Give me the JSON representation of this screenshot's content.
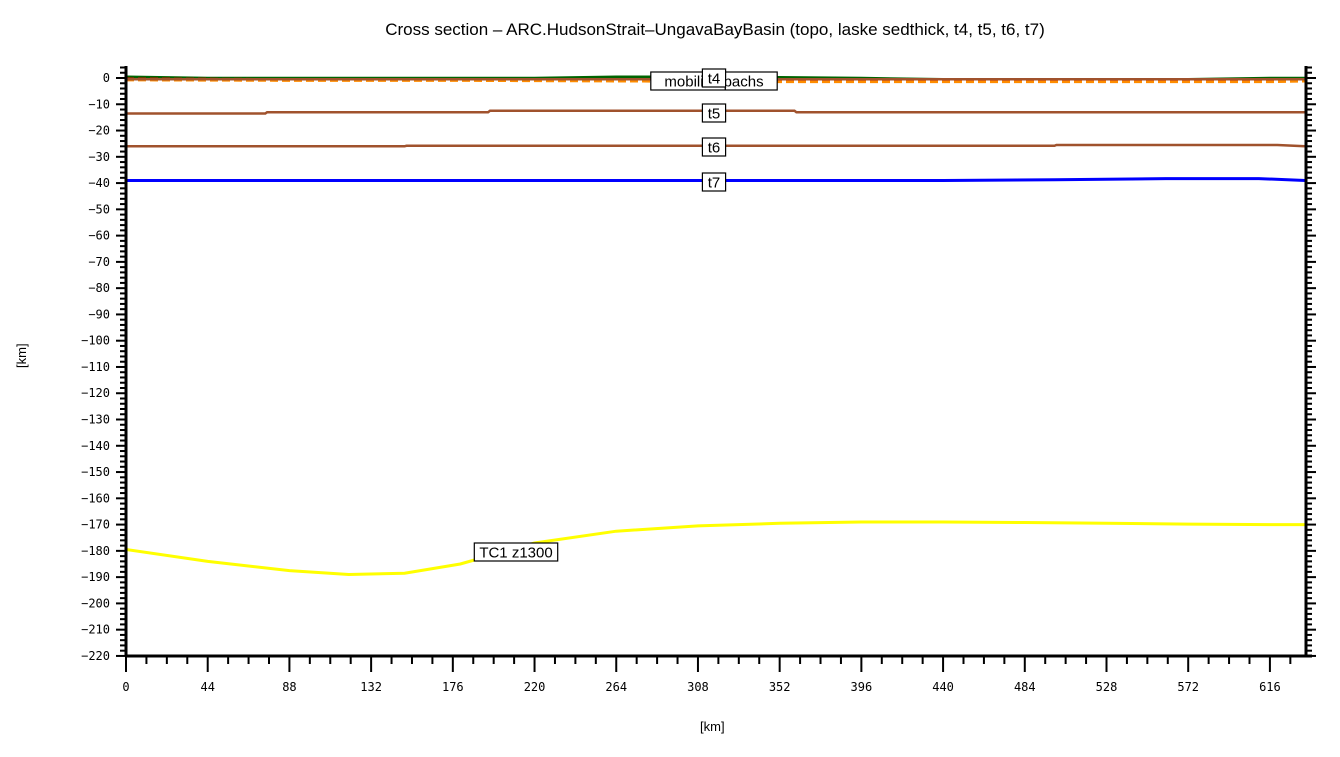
{
  "chart_data": {
    "type": "line",
    "title": "Cross section – ARC.HudsonStrait–UngavaBayBasin (topo, laske sedthick, t4, t5, t6, t7)",
    "xlabel": "[km]",
    "ylabel": "[km]",
    "xlim": [
      0,
      635
    ],
    "ylim": [
      -220,
      5
    ],
    "x_ticks": [
      0,
      44,
      88,
      132,
      176,
      220,
      264,
      308,
      352,
      396,
      440,
      484,
      528,
      572,
      616
    ],
    "y_ticks": [
      0,
      -10,
      -20,
      -30,
      -40,
      -50,
      -60,
      -70,
      -80,
      -90,
      -100,
      -110,
      -120,
      -130,
      -140,
      -150,
      -160,
      -170,
      -180,
      -190,
      -200,
      -210,
      -220
    ],
    "grid": false,
    "series": [
      {
        "name": "topo",
        "color": "#006400",
        "style": "solid",
        "x": [
          0,
          44,
          88,
          132,
          176,
          220,
          264,
          308,
          352,
          396,
          440,
          484,
          528,
          572,
          616,
          635
        ],
        "values": [
          0.5,
          0,
          0,
          0,
          0,
          0,
          0.5,
          0.5,
          0.3,
          0,
          -0.5,
          -0.5,
          -0.5,
          -0.5,
          0,
          0
        ]
      },
      {
        "name": "laske sedthick",
        "color": "#ff0000",
        "style": "dashed",
        "x": [
          0,
          88,
          176,
          264,
          352,
          440,
          528,
          616,
          635
        ],
        "values": [
          -0.3,
          -0.5,
          -0.5,
          -0.5,
          -0.8,
          -1,
          -1,
          -1,
          -0.8
        ]
      },
      {
        "name": "mobilistopachs",
        "color": "#ff8c00",
        "style": "dashed",
        "x": [
          0,
          88,
          176,
          264,
          352,
          440,
          528,
          616,
          635
        ],
        "values": [
          -0.8,
          -1,
          -1,
          -1.2,
          -1.5,
          -1.5,
          -1.5,
          -1.5,
          -1.2
        ]
      },
      {
        "name": "t4",
        "color": "#a0522d",
        "style": "solid",
        "x": [
          0,
          635
        ],
        "values": [
          -0.5,
          -0.5
        ]
      },
      {
        "name": "t5",
        "color": "#a0522d",
        "style": "solid",
        "x": [
          0,
          75,
          76,
          195,
          196,
          360,
          361,
          570,
          571,
          635
        ],
        "values": [
          -13.5,
          -13.5,
          -13,
          -13,
          -12.5,
          -12.5,
          -13,
          -13,
          -13,
          -13
        ]
      },
      {
        "name": "t6",
        "color": "#a0522d",
        "style": "solid",
        "x": [
          0,
          150,
          151,
          500,
          501,
          620,
          635
        ],
        "values": [
          -26,
          -26,
          -25.8,
          -25.8,
          -25.5,
          -25.5,
          -26
        ]
      },
      {
        "name": "t7",
        "color": "#0000ff",
        "style": "solid",
        "x": [
          0,
          440,
          500,
          560,
          610,
          635
        ],
        "values": [
          -39,
          -39,
          -38.7,
          -38.3,
          -38.3,
          -39
        ]
      },
      {
        "name": "TC1_z1300",
        "color": "#ffff00",
        "style": "solid",
        "x": [
          0,
          44,
          88,
          120,
          150,
          180,
          220,
          264,
          308,
          352,
          396,
          440,
          484,
          528,
          572,
          616,
          635
        ],
        "values": [
          -179.5,
          -184,
          -187.5,
          -189,
          -188.5,
          -185,
          -177,
          -172.5,
          -170.5,
          -169.5,
          -169,
          -169,
          -169.2,
          -169.5,
          -169.8,
          -170,
          -170
        ]
      }
    ],
    "annotations": [
      {
        "text": "mobilistopachs",
        "x": 314,
        "y": -1
      },
      {
        "text": "t4",
        "x": 316,
        "y": -0.5
      },
      {
        "text": "t5",
        "x": 316,
        "y": -13
      },
      {
        "text": "t6",
        "x": 316,
        "y": -26
      },
      {
        "text": "t7",
        "x": 316,
        "y": -39
      },
      {
        "text": "TC1_z1300",
        "x": 197,
        "y": -181
      }
    ]
  },
  "labels": {
    "title": "Cross section – ARC.HudsonStrait–UngavaBayBasin (topo, laske sedthick, t4, t5, t6, t7)",
    "xlabel": "[km]",
    "ylabel": "[km]",
    "mobilis": "mobilistopachs",
    "t4": "t4",
    "t5": "t5",
    "t6": "t6",
    "t7": "t7",
    "tc1": "TC1_z1300"
  }
}
